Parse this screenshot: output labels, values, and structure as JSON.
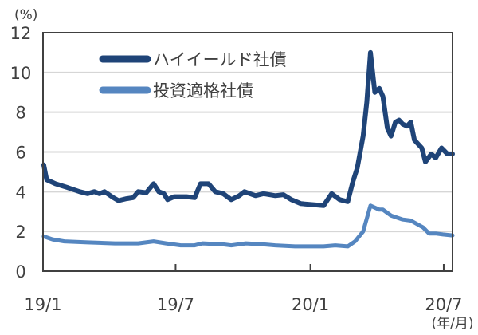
{
  "chart_data": {
    "type": "line",
    "title": "",
    "ylabel": "(%)",
    "xlabel": "(年/月)",
    "ylim": [
      0,
      12
    ],
    "yticks": [
      0,
      2,
      4,
      6,
      8,
      10,
      12
    ],
    "xlim": [
      "2019-01-01",
      "2020-07-13"
    ],
    "xticks": [
      {
        "date": "2019-01-01",
        "label": "19/1"
      },
      {
        "date": "2019-07-01",
        "label": "19/7"
      },
      {
        "date": "2020-01-01",
        "label": "20/1"
      },
      {
        "date": "2020-07-01",
        "label": "20/7"
      }
    ],
    "grid": true,
    "legend_position": "top-left",
    "series": [
      {
        "name": "ハイイールド社債",
        "color": "#1f4478",
        "points": [
          [
            "2019-01-02",
            5.35
          ],
          [
            "2019-01-06",
            4.6
          ],
          [
            "2019-01-18",
            4.4
          ],
          [
            "2019-02-04",
            4.2
          ],
          [
            "2019-02-20",
            4.0
          ],
          [
            "2019-03-03",
            3.9
          ],
          [
            "2019-03-12",
            4.0
          ],
          [
            "2019-03-19",
            3.9
          ],
          [
            "2019-03-26",
            4.0
          ],
          [
            "2019-04-07",
            3.7
          ],
          [
            "2019-04-14",
            3.55
          ],
          [
            "2019-04-25",
            3.65
          ],
          [
            "2019-05-04",
            3.7
          ],
          [
            "2019-05-11",
            4.0
          ],
          [
            "2019-05-22",
            3.95
          ],
          [
            "2019-06-01",
            4.4
          ],
          [
            "2019-06-08",
            4.0
          ],
          [
            "2019-06-15",
            3.9
          ],
          [
            "2019-06-20",
            3.6
          ],
          [
            "2019-06-29",
            3.75
          ],
          [
            "2019-07-16",
            3.75
          ],
          [
            "2019-07-27",
            3.7
          ],
          [
            "2019-08-04",
            4.4
          ],
          [
            "2019-08-15",
            4.4
          ],
          [
            "2019-08-24",
            4.0
          ],
          [
            "2019-09-04",
            3.9
          ],
          [
            "2019-09-15",
            3.6
          ],
          [
            "2019-09-26",
            3.8
          ],
          [
            "2019-10-03",
            4.0
          ],
          [
            "2019-10-18",
            3.8
          ],
          [
            "2019-10-29",
            3.9
          ],
          [
            "2019-11-14",
            3.8
          ],
          [
            "2019-11-25",
            3.85
          ],
          [
            "2019-12-06",
            3.6
          ],
          [
            "2019-12-19",
            3.4
          ],
          [
            "2020-01-03",
            3.35
          ],
          [
            "2020-01-19",
            3.3
          ],
          [
            "2020-01-30",
            3.9
          ],
          [
            "2020-02-10",
            3.6
          ],
          [
            "2020-02-21",
            3.5
          ],
          [
            "2020-02-28",
            4.5
          ],
          [
            "2020-03-05",
            5.2
          ],
          [
            "2020-03-13",
            6.8
          ],
          [
            "2020-03-18",
            8.5
          ],
          [
            "2020-03-23",
            11.0
          ],
          [
            "2020-03-29",
            9.0
          ],
          [
            "2020-04-04",
            9.2
          ],
          [
            "2020-04-09",
            8.8
          ],
          [
            "2020-04-15",
            7.2
          ],
          [
            "2020-04-20",
            6.8
          ],
          [
            "2020-04-26",
            7.5
          ],
          [
            "2020-05-01",
            7.6
          ],
          [
            "2020-05-06",
            7.4
          ],
          [
            "2020-05-12",
            7.3
          ],
          [
            "2020-05-17",
            7.5
          ],
          [
            "2020-05-22",
            6.6
          ],
          [
            "2020-06-01",
            6.2
          ],
          [
            "2020-06-06",
            5.5
          ],
          [
            "2020-06-14",
            5.9
          ],
          [
            "2020-06-20",
            5.7
          ],
          [
            "2020-06-28",
            6.2
          ],
          [
            "2020-07-06",
            5.9
          ],
          [
            "2020-07-13",
            5.9
          ]
        ]
      },
      {
        "name": "投資適格社債",
        "color": "#5586c0",
        "points": [
          [
            "2019-01-02",
            1.75
          ],
          [
            "2019-01-14",
            1.6
          ],
          [
            "2019-01-30",
            1.5
          ],
          [
            "2019-03-03",
            1.45
          ],
          [
            "2019-04-09",
            1.4
          ],
          [
            "2019-05-11",
            1.4
          ],
          [
            "2019-06-01",
            1.5
          ],
          [
            "2019-06-18",
            1.4
          ],
          [
            "2019-07-08",
            1.3
          ],
          [
            "2019-07-27",
            1.3
          ],
          [
            "2019-08-07",
            1.4
          ],
          [
            "2019-09-04",
            1.35
          ],
          [
            "2019-09-15",
            1.3
          ],
          [
            "2019-10-05",
            1.4
          ],
          [
            "2019-10-29",
            1.35
          ],
          [
            "2019-11-14",
            1.3
          ],
          [
            "2019-12-11",
            1.25
          ],
          [
            "2020-01-19",
            1.25
          ],
          [
            "2020-02-04",
            1.3
          ],
          [
            "2020-02-21",
            1.25
          ],
          [
            "2020-03-02",
            1.5
          ],
          [
            "2020-03-13",
            2.0
          ],
          [
            "2020-03-23",
            3.3
          ],
          [
            "2020-04-04",
            3.1
          ],
          [
            "2020-04-09",
            3.1
          ],
          [
            "2020-04-20",
            2.8
          ],
          [
            "2020-05-06",
            2.6
          ],
          [
            "2020-05-17",
            2.55
          ],
          [
            "2020-06-03",
            2.2
          ],
          [
            "2020-06-11",
            1.9
          ],
          [
            "2020-06-20",
            1.9
          ],
          [
            "2020-06-30",
            1.85
          ],
          [
            "2020-07-13",
            1.8
          ]
        ]
      }
    ]
  }
}
